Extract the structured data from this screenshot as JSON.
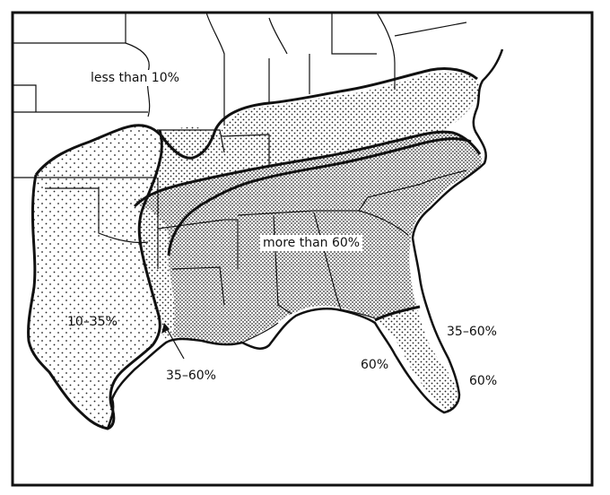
{
  "labels": {
    "lt10": "less than 10%",
    "gt60": "more than 60%",
    "r10_35": "10–35%",
    "r35_60_west": "35–60%",
    "r35_60_east": "35–60%",
    "p60_a": "60%",
    "p60_b": "60%"
  },
  "legend_zones": [
    {
      "range": "less than 10%",
      "pattern": "blank"
    },
    {
      "range": "10–35%",
      "pattern": "sparse-dots"
    },
    {
      "range": "35–60%",
      "pattern": "dots"
    },
    {
      "range": "more than 60%",
      "pattern": "dense-dots"
    }
  ],
  "colors": {
    "ink": "#111111",
    "paper": "#ffffff"
  }
}
